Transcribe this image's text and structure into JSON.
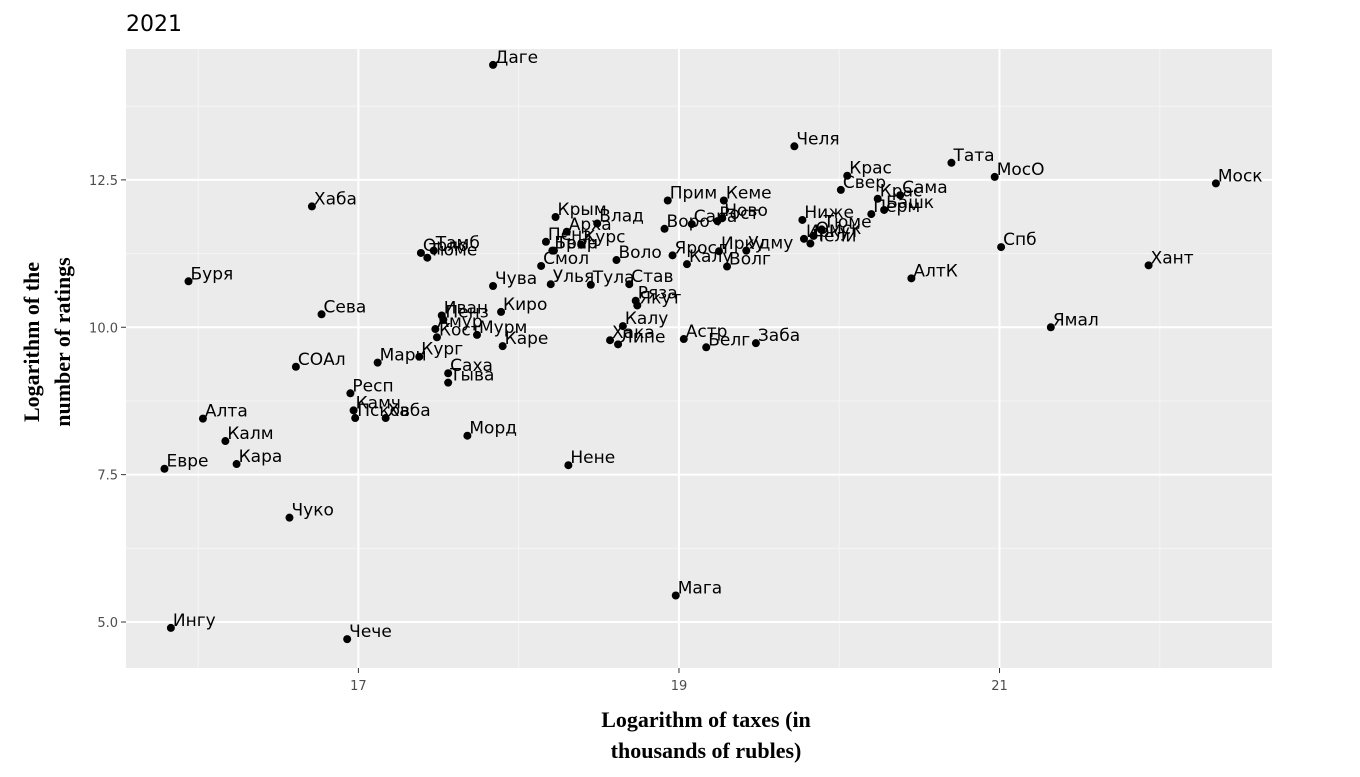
{
  "chart_data": {
    "type": "scatter",
    "title": "2021",
    "xlabel": [
      "Logarithm of taxes (in",
      "thousands of rubles)"
    ],
    "ylabel": [
      "Logarithm of the",
      "number of ratings"
    ],
    "xlim": [
      15.55,
      22.7
    ],
    "ylim": [
      4.22,
      14.72
    ],
    "xticks": [
      {
        "value": 17,
        "label": "17"
      },
      {
        "value": 19,
        "label": "19"
      },
      {
        "value": 21,
        "label": "21"
      }
    ],
    "yticks": [
      {
        "value": 5.0,
        "label": "5.0"
      },
      {
        "value": 7.5,
        "label": "7.5"
      },
      {
        "value": 10.0,
        "label": "10.0"
      },
      {
        "value": 12.5,
        "label": "12.5"
      }
    ],
    "grid": true,
    "points": [
      {
        "label": "Даге",
        "x": 17.84,
        "y": 14.45
      },
      {
        "label": "Челя",
        "x": 19.72,
        "y": 13.07
      },
      {
        "label": "Тата",
        "x": 20.7,
        "y": 12.79
      },
      {
        "label": "МосО",
        "x": 20.97,
        "y": 12.55
      },
      {
        "label": "Моск",
        "x": 22.35,
        "y": 12.44
      },
      {
        "label": "Крас",
        "x": 20.05,
        "y": 12.57
      },
      {
        "label": "Свер",
        "x": 20.01,
        "y": 12.33
      },
      {
        "label": "Сама",
        "x": 20.38,
        "y": 12.24
      },
      {
        "label": "Крас",
        "x": 20.24,
        "y": 12.18
      },
      {
        "label": "Перм",
        "x": 20.2,
        "y": 11.92
      },
      {
        "label": "Башк",
        "x": 20.28,
        "y": 11.99
      },
      {
        "label": "Хаба",
        "x": 16.71,
        "y": 12.05
      },
      {
        "label": "Прим",
        "x": 18.93,
        "y": 12.15
      },
      {
        "label": "Кеме",
        "x": 19.28,
        "y": 12.15
      },
      {
        "label": "Ново",
        "x": 19.27,
        "y": 11.85
      },
      {
        "label": "Рост",
        "x": 19.24,
        "y": 11.8
      },
      {
        "label": "Сара",
        "x": 19.08,
        "y": 11.75
      },
      {
        "label": "Воро",
        "x": 18.91,
        "y": 11.67
      },
      {
        "label": "Ниже",
        "x": 19.77,
        "y": 11.82
      },
      {
        "label": "Тюме",
        "x": 19.89,
        "y": 11.66
      },
      {
        "label": "Омск",
        "x": 19.84,
        "y": 11.55
      },
      {
        "label": "Иркут",
        "x": 19.78,
        "y": 11.5
      },
      {
        "label": "Чели",
        "x": 19.82,
        "y": 11.42
      },
      {
        "label": "Крым",
        "x": 18.23,
        "y": 11.87
      },
      {
        "label": "Влад",
        "x": 18.49,
        "y": 11.76
      },
      {
        "label": "Арха",
        "x": 18.3,
        "y": 11.62
      },
      {
        "label": "Пенз",
        "x": 18.17,
        "y": 11.45
      },
      {
        "label": "Курс",
        "x": 18.39,
        "y": 11.4
      },
      {
        "label": "Твер",
        "x": 18.22,
        "y": 11.3
      },
      {
        "label": "Брян",
        "x": 18.21,
        "y": 11.3
      },
      {
        "label": "Смол",
        "x": 18.14,
        "y": 11.04
      },
      {
        "label": "Воло",
        "x": 18.61,
        "y": 11.14
      },
      {
        "label": "Яросл",
        "x": 18.96,
        "y": 11.22
      },
      {
        "label": "Ирку",
        "x": 19.25,
        "y": 11.29
      },
      {
        "label": "Удму",
        "x": 19.42,
        "y": 11.3
      },
      {
        "label": "Калу",
        "x": 19.05,
        "y": 11.07
      },
      {
        "label": "Волг",
        "x": 19.3,
        "y": 11.03
      },
      {
        "label": "Тамб",
        "x": 17.47,
        "y": 11.3
      },
      {
        "label": "Орло",
        "x": 17.39,
        "y": 11.26
      },
      {
        "label": "Тюме",
        "x": 17.43,
        "y": 11.18
      },
      {
        "label": "Буря",
        "x": 15.94,
        "y": 10.78
      },
      {
        "label": "Чува",
        "x": 17.84,
        "y": 10.7
      },
      {
        "label": "Улья",
        "x": 18.2,
        "y": 10.73
      },
      {
        "label": "Тула",
        "x": 18.45,
        "y": 10.72
      },
      {
        "label": "Став",
        "x": 18.69,
        "y": 10.73
      },
      {
        "label": "Ряза",
        "x": 18.73,
        "y": 10.45
      },
      {
        "label": "Якут",
        "x": 18.74,
        "y": 10.37
      },
      {
        "label": "Спб",
        "x": 21.01,
        "y": 11.36
      },
      {
        "label": "АлтК",
        "x": 20.45,
        "y": 10.83
      },
      {
        "label": "Хант",
        "x": 21.93,
        "y": 11.05
      },
      {
        "label": "Сева",
        "x": 16.77,
        "y": 10.22
      },
      {
        "label": "Иван",
        "x": 17.52,
        "y": 10.2
      },
      {
        "label": "Пенз",
        "x": 17.53,
        "y": 10.13
      },
      {
        "label": "Киро",
        "x": 17.89,
        "y": 10.26
      },
      {
        "label": "Амур",
        "x": 17.48,
        "y": 9.97
      },
      {
        "label": "Мурм",
        "x": 17.74,
        "y": 9.87
      },
      {
        "label": "Кост",
        "x": 17.49,
        "y": 9.83
      },
      {
        "label": "Каре",
        "x": 17.9,
        "y": 9.68
      },
      {
        "label": "Калу",
        "x": 18.65,
        "y": 10.02
      },
      {
        "label": "Хака",
        "x": 18.57,
        "y": 9.78
      },
      {
        "label": "Липе",
        "x": 18.62,
        "y": 9.71
      },
      {
        "label": "Астр",
        "x": 19.03,
        "y": 9.8
      },
      {
        "label": "Белг",
        "x": 19.17,
        "y": 9.66
      },
      {
        "label": "Заба",
        "x": 19.48,
        "y": 9.73
      },
      {
        "label": "Ямал",
        "x": 21.32,
        "y": 10.0
      },
      {
        "label": "СОАл",
        "x": 16.61,
        "y": 9.33
      },
      {
        "label": "Мари",
        "x": 17.12,
        "y": 9.4
      },
      {
        "label": "Кург",
        "x": 17.38,
        "y": 9.5
      },
      {
        "label": "Саха",
        "x": 17.56,
        "y": 9.22
      },
      {
        "label": "Тыва",
        "x": 17.56,
        "y": 9.06
      },
      {
        "label": "Респ",
        "x": 16.95,
        "y": 8.88
      },
      {
        "label": "Камч",
        "x": 16.97,
        "y": 8.59
      },
      {
        "label": "Псков",
        "x": 16.98,
        "y": 8.46
      },
      {
        "label": "Хаба",
        "x": 17.17,
        "y": 8.46
      },
      {
        "label": "Морд",
        "x": 17.68,
        "y": 8.16
      },
      {
        "label": "Алта",
        "x": 16.03,
        "y": 8.45
      },
      {
        "label": "Калм",
        "x": 16.17,
        "y": 8.07
      },
      {
        "label": "Кара",
        "x": 16.24,
        "y": 7.68
      },
      {
        "label": "Евре",
        "x": 15.79,
        "y": 7.6
      },
      {
        "label": "Нене",
        "x": 18.31,
        "y": 7.66
      },
      {
        "label": "Чуко",
        "x": 16.57,
        "y": 6.77
      },
      {
        "label": "Мага",
        "x": 18.98,
        "y": 5.45
      },
      {
        "label": "Ингу",
        "x": 15.83,
        "y": 4.9
      },
      {
        "label": "Чече",
        "x": 16.93,
        "y": 4.71
      }
    ]
  }
}
